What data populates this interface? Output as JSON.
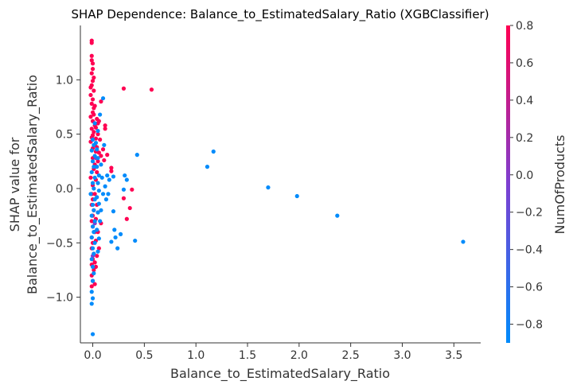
{
  "chart_data": {
    "type": "scatter",
    "title": "SHAP Dependence: Balance_to_EstimatedSalary_Ratio (XGBClassifier)",
    "xlabel": "Balance_to_EstimatedSalary_Ratio",
    "ylabel_lines": [
      "SHAP value for",
      "Balance_to_EstimatedSalary_Ratio"
    ],
    "xlim": [
      -0.12,
      3.76
    ],
    "ylim": [
      -1.42,
      1.5
    ],
    "xticks": [
      0.0,
      0.5,
      1.0,
      1.5,
      2.0,
      2.5,
      3.0,
      3.5
    ],
    "xtick_labels": [
      "0.0",
      "0.5",
      "1.0",
      "1.5",
      "2.0",
      "2.5",
      "3.0",
      "3.5"
    ],
    "yticks": [
      -1.0,
      -0.5,
      0.0,
      0.5,
      1.0
    ],
    "ytick_labels": [
      "−1.0",
      "−0.5",
      "0.0",
      "0.5",
      "1.0"
    ],
    "grid": false,
    "colorbar": {
      "label": "NumOfProducts",
      "range": [
        -0.9,
        0.8
      ],
      "ticks": [
        -0.8,
        -0.6,
        -0.4,
        -0.2,
        0.0,
        0.2,
        0.4,
        0.6,
        0.8
      ],
      "tick_labels": [
        "−0.8",
        "−0.6",
        "−0.4",
        "−0.2",
        "0.0",
        "0.2",
        "0.4",
        "0.6",
        "0.8"
      ],
      "low_color": "#008bfb",
      "high_color": "#ff0052"
    },
    "points": [
      [
        -0.01,
        1.36,
        "high"
      ],
      [
        -0.01,
        1.34,
        "high"
      ],
      [
        -0.01,
        1.18,
        "high"
      ],
      [
        0.0,
        1.15,
        "high"
      ],
      [
        -0.01,
        1.06,
        "high"
      ],
      [
        0.0,
        0.99,
        "high"
      ],
      [
        -0.01,
        0.95,
        "high"
      ],
      [
        0.01,
        0.9,
        "high"
      ],
      [
        -0.02,
        0.86,
        "high"
      ],
      [
        0.0,
        0.82,
        "high"
      ],
      [
        -0.01,
        0.78,
        "high"
      ],
      [
        0.01,
        0.74,
        "high"
      ],
      [
        0.0,
        0.7,
        "high"
      ],
      [
        -0.02,
        0.66,
        "high"
      ],
      [
        0.0,
        0.62,
        "high"
      ],
      [
        0.02,
        0.58,
        "high"
      ],
      [
        -0.01,
        0.55,
        "high"
      ],
      [
        0.01,
        0.52,
        "high"
      ],
      [
        0.0,
        0.49,
        "high"
      ],
      [
        0.03,
        0.46,
        "high"
      ],
      [
        -0.02,
        0.43,
        "high"
      ],
      [
        0.02,
        0.4,
        "high"
      ],
      [
        0.0,
        0.37,
        "high"
      ],
      [
        0.03,
        0.34,
        "high"
      ],
      [
        0.04,
        0.64,
        "high"
      ],
      [
        0.05,
        0.6,
        "high"
      ],
      [
        0.06,
        0.62,
        "high"
      ],
      [
        0.05,
        0.5,
        "high"
      ],
      [
        0.07,
        0.45,
        "high"
      ],
      [
        0.04,
        0.38,
        "high"
      ],
      [
        0.06,
        0.33,
        "high"
      ],
      [
        0.08,
        0.3,
        "high"
      ],
      [
        0.1,
        0.36,
        "high"
      ],
      [
        0.12,
        0.55,
        "high"
      ],
      [
        0.12,
        0.58,
        "high"
      ],
      [
        0.14,
        0.31,
        "high"
      ],
      [
        0.11,
        0.26,
        "high"
      ],
      [
        0.18,
        0.19,
        "high"
      ],
      [
        0.18,
        0.16,
        "high"
      ],
      [
        0.08,
        0.8,
        "high"
      ],
      [
        0.3,
        0.92,
        "high"
      ],
      [
        0.57,
        0.91,
        "high"
      ],
      [
        -0.01,
        -0.05,
        "high"
      ],
      [
        0.0,
        -0.1,
        "high"
      ],
      [
        -0.01,
        -0.15,
        "high"
      ],
      [
        0.01,
        -0.2,
        "high"
      ],
      [
        0.0,
        -0.25,
        "high"
      ],
      [
        -0.01,
        -0.3,
        "high"
      ],
      [
        0.0,
        -0.35,
        "high"
      ],
      [
        0.02,
        -0.4,
        "high"
      ],
      [
        -0.01,
        -0.45,
        "high"
      ],
      [
        0.0,
        -0.5,
        "high"
      ],
      [
        -0.01,
        -0.55,
        "high"
      ],
      [
        0.01,
        -0.6,
        "high"
      ],
      [
        0.0,
        -0.65,
        "high"
      ],
      [
        -0.01,
        -0.7,
        "high"
      ],
      [
        0.01,
        -0.75,
        "high"
      ],
      [
        -0.01,
        -0.8,
        "high"
      ],
      [
        0.0,
        -0.85,
        "high"
      ],
      [
        -0.01,
        -0.9,
        "high"
      ],
      [
        0.02,
        -0.88,
        "high"
      ],
      [
        0.03,
        -0.72,
        "high"
      ],
      [
        0.03,
        -0.48,
        "high"
      ],
      [
        0.05,
        -0.4,
        "high"
      ],
      [
        0.03,
        -0.28,
        "high"
      ],
      [
        0.05,
        -0.22,
        "high"
      ],
      [
        0.04,
        -0.15,
        "high"
      ],
      [
        0.02,
        -0.05,
        "high"
      ],
      [
        0.03,
        0.08,
        "high"
      ],
      [
        0.04,
        0.15,
        "high"
      ],
      [
        0.02,
        0.22,
        "high"
      ],
      [
        0.05,
        0.25,
        "high"
      ],
      [
        0.38,
        -0.01,
        "high"
      ],
      [
        0.36,
        -0.18,
        "high"
      ],
      [
        0.33,
        -0.28,
        "high"
      ],
      [
        0.3,
        -0.09,
        "high"
      ],
      [
        0.08,
        -0.32,
        "high"
      ],
      [
        0.06,
        -0.55,
        "high"
      ],
      [
        0.04,
        -0.62,
        "high"
      ],
      [
        0.02,
        -0.68,
        "high"
      ],
      [
        -0.01,
        1.22,
        "high"
      ],
      [
        0.0,
        1.1,
        "high"
      ],
      [
        0.01,
        1.02,
        "high"
      ],
      [
        -0.02,
        0.93,
        "high"
      ],
      [
        0.02,
        0.76,
        "high"
      ],
      [
        0.01,
        0.68,
        "high"
      ],
      [
        0.03,
        0.56,
        "high"
      ],
      [
        -0.01,
        0.47,
        "high"
      ],
      [
        0.0,
        0.28,
        "high"
      ],
      [
        0.01,
        0.18,
        "high"
      ],
      [
        -0.02,
        0.1,
        "high"
      ],
      [
        0.0,
        0.03,
        "high"
      ],
      [
        0.03,
        0.28,
        "mid"
      ],
      [
        0.02,
        -0.32,
        "mid"
      ],
      [
        0.0,
        -0.62,
        "mid"
      ],
      [
        0.0,
        0.45,
        "low"
      ],
      [
        0.01,
        0.4,
        "low"
      ],
      [
        -0.01,
        0.35,
        "low"
      ],
      [
        0.02,
        0.3,
        "low"
      ],
      [
        0.0,
        0.25,
        "low"
      ],
      [
        0.01,
        0.2,
        "low"
      ],
      [
        -0.01,
        0.15,
        "low"
      ],
      [
        0.02,
        0.1,
        "low"
      ],
      [
        0.0,
        0.05,
        "low"
      ],
      [
        0.01,
        0.0,
        "low"
      ],
      [
        -0.02,
        -0.05,
        "low"
      ],
      [
        0.02,
        -0.1,
        "low"
      ],
      [
        0.0,
        -0.15,
        "low"
      ],
      [
        0.01,
        -0.2,
        "low"
      ],
      [
        -0.01,
        -0.25,
        "low"
      ],
      [
        0.02,
        -0.3,
        "low"
      ],
      [
        0.0,
        -0.35,
        "low"
      ],
      [
        0.01,
        -0.4,
        "low"
      ],
      [
        -0.01,
        -0.45,
        "low"
      ],
      [
        0.02,
        -0.5,
        "low"
      ],
      [
        0.0,
        -0.55,
        "low"
      ],
      [
        0.01,
        -0.6,
        "low"
      ],
      [
        -0.01,
        -0.65,
        "low"
      ],
      [
        0.0,
        -0.72,
        "low"
      ],
      [
        0.01,
        -0.78,
        "low"
      ],
      [
        0.0,
        -0.85,
        "low"
      ],
      [
        -0.01,
        -0.95,
        "low"
      ],
      [
        0.0,
        -1.01,
        "low"
      ],
      [
        -0.01,
        -1.06,
        "low"
      ],
      [
        0.0,
        -1.34,
        "low"
      ],
      [
        0.03,
        0.42,
        "low"
      ],
      [
        0.04,
        0.36,
        "low"
      ],
      [
        0.05,
        0.28,
        "low"
      ],
      [
        0.04,
        0.2,
        "low"
      ],
      [
        0.06,
        0.12,
        "low"
      ],
      [
        0.05,
        0.05,
        "low"
      ],
      [
        0.06,
        -0.02,
        "low"
      ],
      [
        0.04,
        -0.08,
        "low"
      ],
      [
        0.06,
        -0.14,
        "low"
      ],
      [
        0.05,
        -0.22,
        "low"
      ],
      [
        0.07,
        -0.3,
        "low"
      ],
      [
        0.04,
        -0.38,
        "low"
      ],
      [
        0.06,
        -0.46,
        "low"
      ],
      [
        0.05,
        -0.58,
        "low"
      ],
      [
        0.08,
        0.22,
        "low"
      ],
      [
        0.09,
        0.1,
        "low"
      ],
      [
        0.1,
        -0.05,
        "low"
      ],
      [
        0.08,
        -0.2,
        "low"
      ],
      [
        0.11,
        0.4,
        "low"
      ],
      [
        0.12,
        0.02,
        "low"
      ],
      [
        0.13,
        -0.1,
        "low"
      ],
      [
        0.14,
        0.12,
        "low"
      ],
      [
        0.16,
        0.08,
        "low"
      ],
      [
        0.15,
        -0.05,
        "low"
      ],
      [
        0.18,
        -0.49,
        "low"
      ],
      [
        0.2,
        -0.21,
        "low"
      ],
      [
        0.2,
        0.11,
        "low"
      ],
      [
        0.21,
        -0.38,
        "low"
      ],
      [
        0.22,
        -0.45,
        "low"
      ],
      [
        0.24,
        -0.55,
        "low"
      ],
      [
        0.27,
        -0.42,
        "low"
      ],
      [
        0.3,
        -0.01,
        "low"
      ],
      [
        0.31,
        0.12,
        "low"
      ],
      [
        0.33,
        0.08,
        "low"
      ],
      [
        0.41,
        -0.48,
        "low"
      ],
      [
        0.43,
        0.31,
        "low"
      ],
      [
        0.1,
        0.83,
        "low"
      ],
      [
        0.07,
        0.68,
        "low"
      ],
      [
        0.05,
        0.53,
        "low"
      ],
      [
        0.02,
        0.6,
        "low"
      ],
      [
        1.11,
        0.2,
        "low"
      ],
      [
        1.17,
        0.34,
        "low"
      ],
      [
        1.7,
        0.01,
        "low"
      ],
      [
        1.98,
        -0.07,
        "low"
      ],
      [
        2.37,
        -0.25,
        "low"
      ],
      [
        3.59,
        -0.49,
        "low"
      ]
    ]
  }
}
